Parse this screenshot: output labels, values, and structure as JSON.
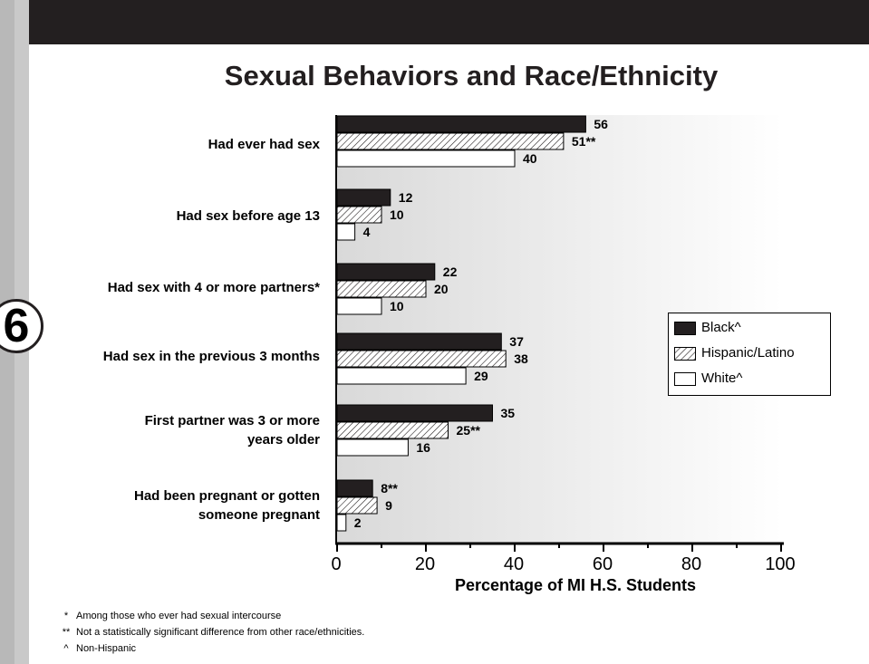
{
  "page": {
    "number": "6"
  },
  "chart_data": {
    "type": "bar",
    "orientation": "horizontal",
    "title": "Sexual Behaviors and Race/Ethnicity",
    "xlabel": "Percentage of MI H.S. Students",
    "ylabel": "",
    "xlim": [
      0,
      100
    ],
    "xticks": [
      "0",
      "20",
      "40",
      "60",
      "80",
      "100"
    ],
    "grid": false,
    "legend_position": "right",
    "categories": [
      "Had ever had sex",
      "Had sex before age 13",
      "Had sex with 4 or more partners*",
      "Had sex in the previous 3 months",
      "First partner was 3 or more years older",
      "Had been pregnant or gotten someone pregnant"
    ],
    "series": [
      {
        "name": "Black^",
        "pattern": "solid",
        "color": "#231f20",
        "values": [
          56,
          12,
          22,
          37,
          35,
          8
        ],
        "labels": [
          "56",
          "12",
          "22",
          "37",
          "35",
          "8**"
        ]
      },
      {
        "name": "Hispanic/Latino",
        "pattern": "hatched",
        "color": "#231f20",
        "values": [
          51,
          10,
          20,
          38,
          25,
          9
        ],
        "labels": [
          "51**",
          "10",
          "20",
          "38",
          "25**",
          "9"
        ]
      },
      {
        "name": "White^",
        "pattern": "open",
        "color": "#ffffff",
        "values": [
          40,
          4,
          10,
          29,
          16,
          2
        ],
        "labels": [
          "40",
          "4",
          "10",
          "29",
          "16",
          "2"
        ]
      }
    ]
  },
  "category_labels": {
    "c0": "Had ever had sex",
    "c1": "Had sex before age 13",
    "c2": "Had sex with 4 or more partners*",
    "c3": "Had sex in the previous 3 months",
    "c4a": "First partner was 3 or more",
    "c4b": "years older",
    "c5a": "Had been pregnant or gotten",
    "c5b": "someone pregnant"
  },
  "footnotes": [
    {
      "mark": "*",
      "text": "Among those who ever had sexual intercourse"
    },
    {
      "mark": "**",
      "text": "Not a statistically significant difference from other race/ethnicities."
    },
    {
      "mark": "^",
      "text": "Non-Hispanic"
    }
  ]
}
